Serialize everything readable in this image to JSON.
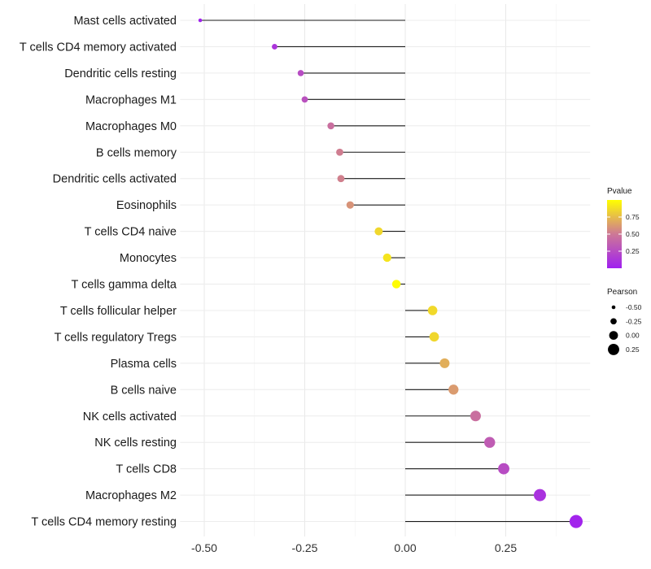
{
  "chart_data": {
    "type": "lollipop",
    "title": "",
    "xlabel": "",
    "ylabel": "",
    "xlim": [
      -0.56,
      0.46
    ],
    "x_ticks": [
      -0.5,
      -0.25,
      0.0,
      0.25
    ],
    "x_tick_labels": [
      "-0.50",
      "-0.25",
      "0.00",
      "0.25"
    ],
    "grid": true,
    "categories": [
      "Mast cells activated",
      "T cells CD4 memory activated",
      "Dendritic cells resting",
      "Macrophages M1",
      "Macrophages M0",
      "B cells memory",
      "Dendritic cells activated",
      "Eosinophils",
      "T cells CD4 naive",
      "Monocytes",
      "T cells gamma delta",
      "T cells follicular helper",
      "T cells regulatory  Tregs ",
      "Plasma cells",
      "B cells naive",
      "NK cells activated",
      "NK cells resting",
      "T cells CD8",
      "Macrophages M2",
      "T cells CD4 memory resting"
    ],
    "pearson": [
      -0.51,
      -0.325,
      -0.26,
      -0.25,
      -0.185,
      -0.163,
      -0.16,
      -0.137,
      -0.066,
      -0.045,
      -0.022,
      0.068,
      0.072,
      0.098,
      0.12,
      0.175,
      0.21,
      0.245,
      0.335,
      0.425
    ],
    "pvalue": [
      0.01,
      0.12,
      0.25,
      0.28,
      0.45,
      0.52,
      0.53,
      0.6,
      0.85,
      0.9,
      0.99,
      0.86,
      0.85,
      0.7,
      0.63,
      0.45,
      0.34,
      0.25,
      0.1,
      0.02
    ],
    "legend_pvalue": {
      "title": "Pvalue",
      "ticks": [
        0.75,
        0.5,
        0.25
      ],
      "tick_labels": [
        "0.75",
        "0.50",
        "0.25"
      ],
      "range": [
        0.0,
        1.0
      ],
      "color_low": "#a020f0",
      "color_high": "#ffff00"
    },
    "legend_pearson": {
      "title": "Pearson",
      "values": [
        -0.5,
        -0.25,
        0.0,
        0.25
      ],
      "labels": [
        "-0.50",
        "-0.25",
        "0.00",
        "0.25"
      ]
    },
    "legend_position": "right"
  }
}
